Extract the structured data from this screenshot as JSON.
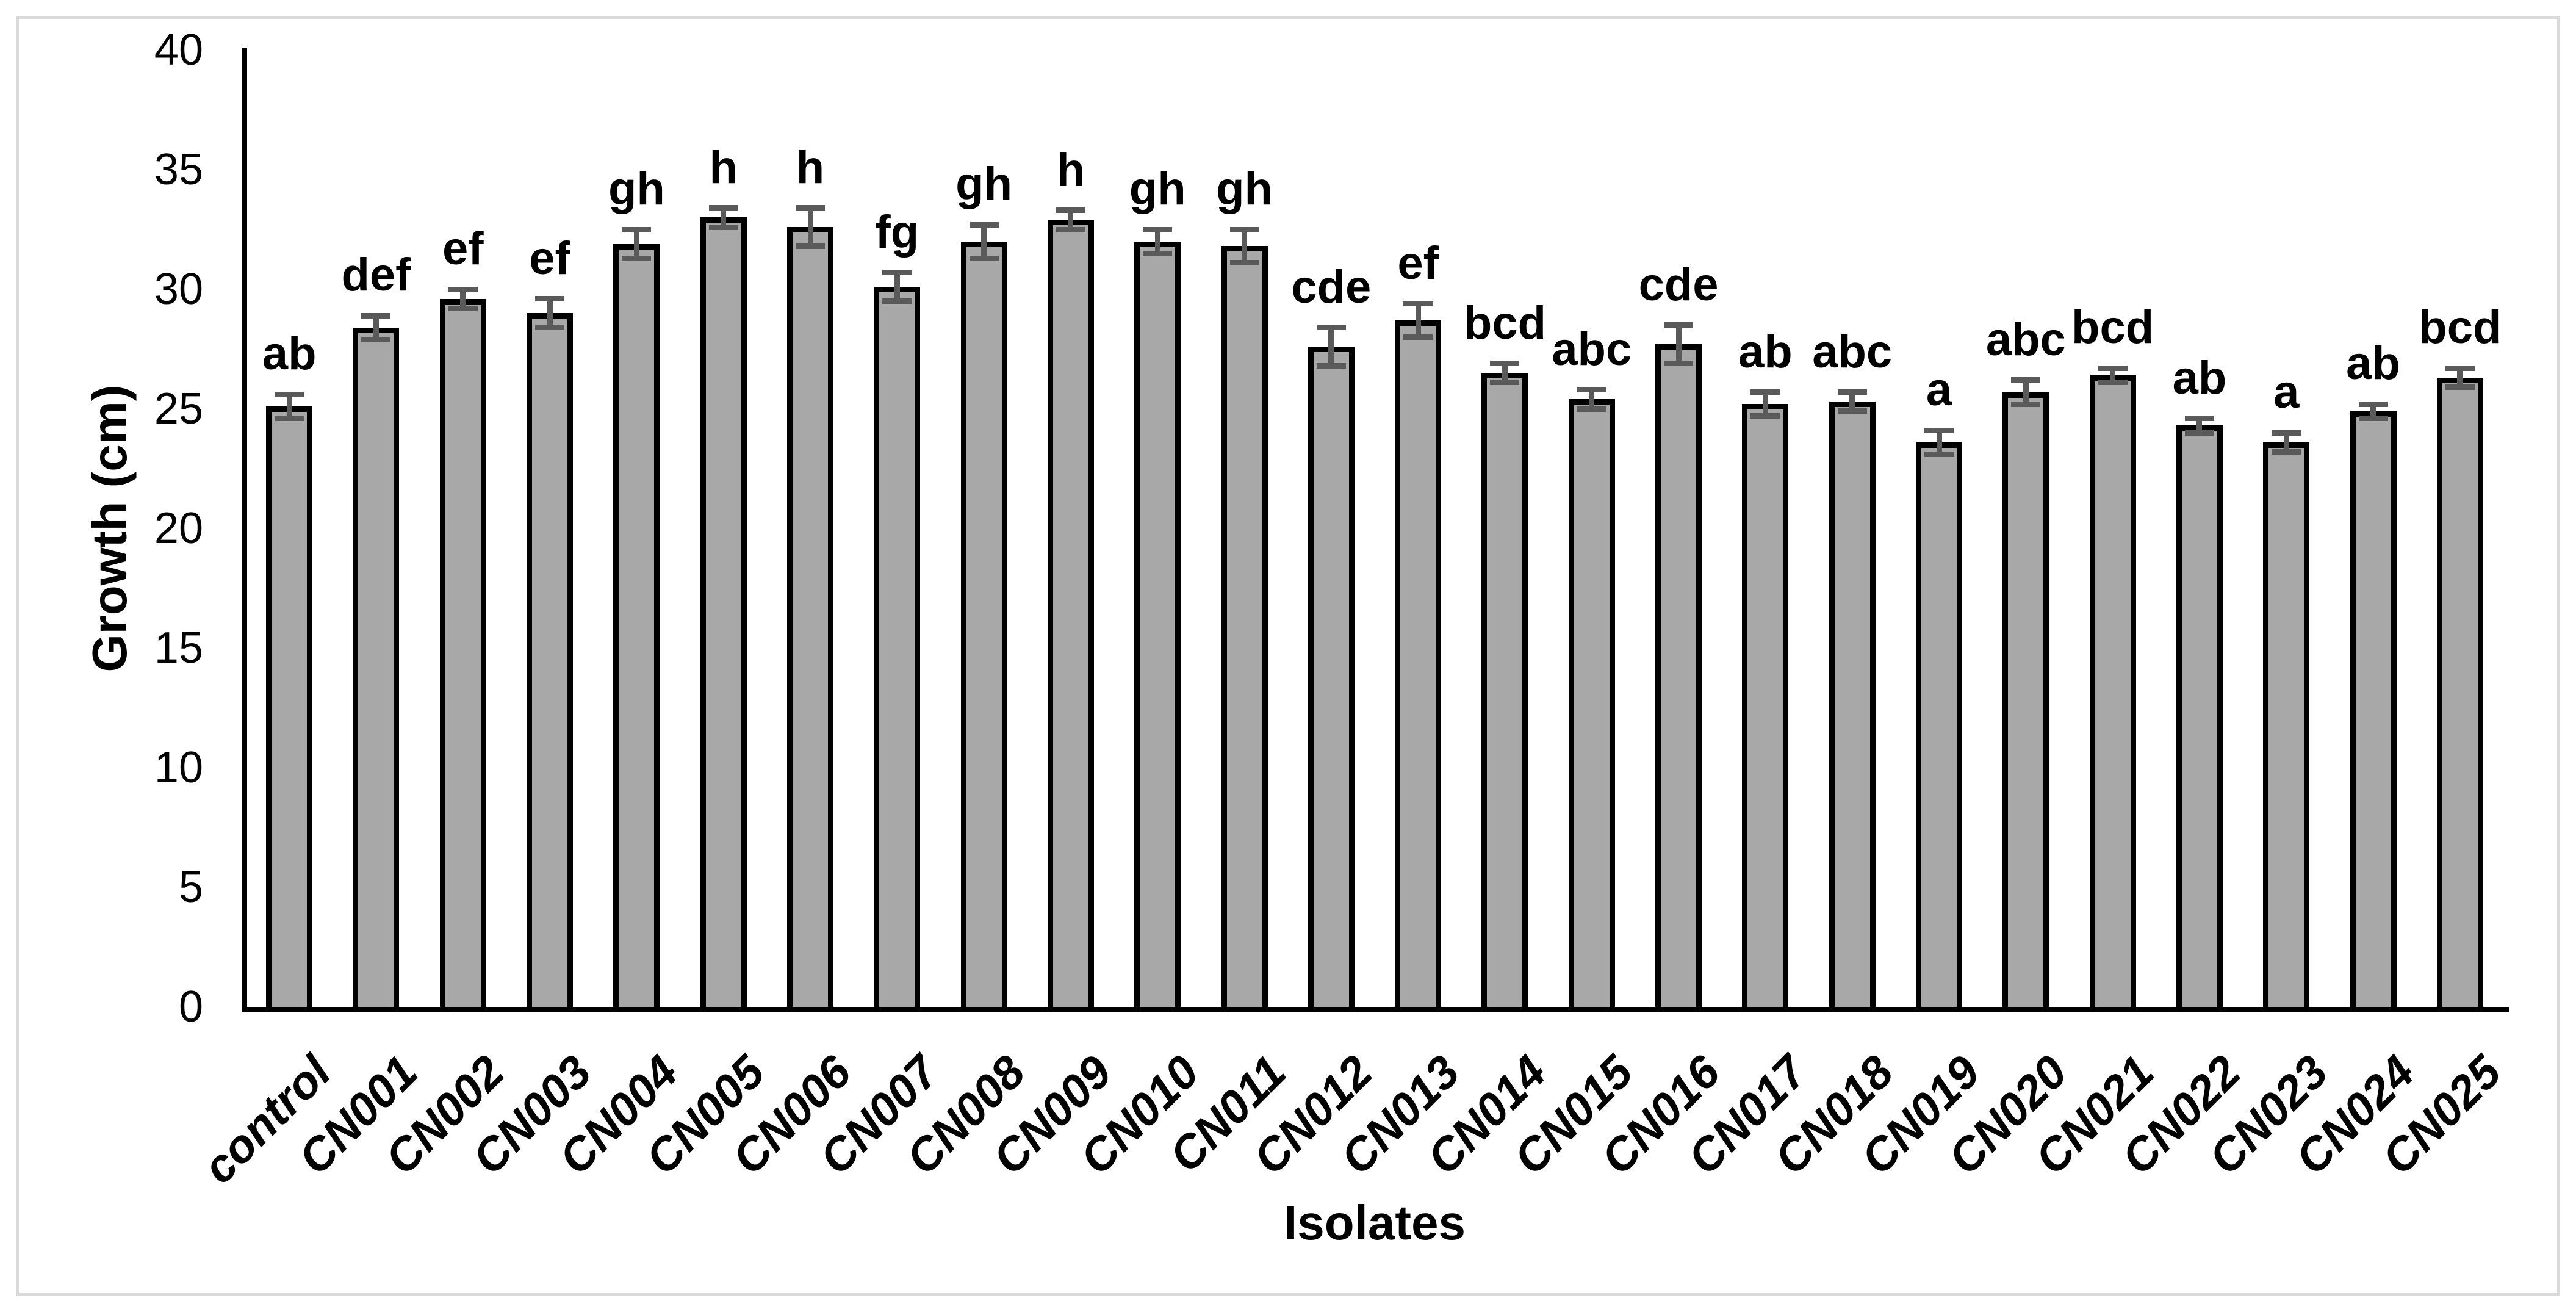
{
  "figure": {
    "background": "#ffffff",
    "border_color": "#d9d9d9"
  },
  "chart_data": {
    "type": "bar",
    "title": "",
    "xlabel": "Isolates",
    "ylabel": "Growth (cm)",
    "ylim": [
      0,
      40
    ],
    "yticks": [
      0,
      5,
      10,
      15,
      20,
      25,
      30,
      35,
      40
    ],
    "grid": false,
    "legend_position": "none",
    "bar_fill_color": "#a8a8a8",
    "bar_border_color": "#000000",
    "error_bar_color": "#5a5a5a",
    "categories": [
      "control",
      "CN001",
      "CN002",
      "CN003",
      "CN004",
      "CN005",
      "CN006",
      "CN007",
      "CN008",
      "CN009",
      "CN010",
      "CN011",
      "CN012",
      "CN013",
      "CN014",
      "CN015",
      "CN016",
      "CN017",
      "CN018",
      "CN019",
      "CN020",
      "CN021",
      "CN022",
      "CN023",
      "CN024",
      "CN025"
    ],
    "values": [
      25.1,
      28.4,
      29.6,
      29.0,
      31.9,
      33.0,
      32.6,
      30.1,
      32.0,
      32.9,
      32.0,
      31.8,
      27.6,
      28.7,
      26.5,
      25.4,
      27.7,
      25.2,
      25.3,
      23.6,
      25.7,
      26.4,
      24.3,
      23.6,
      24.9,
      26.3
    ],
    "errors": [
      0.5,
      0.5,
      0.4,
      0.6,
      0.6,
      0.4,
      0.8,
      0.6,
      0.7,
      0.4,
      0.5,
      0.7,
      0.8,
      0.7,
      0.4,
      0.4,
      0.8,
      0.5,
      0.4,
      0.5,
      0.5,
      0.3,
      0.3,
      0.4,
      0.3,
      0.4
    ],
    "sig_letters": [
      "ab",
      "def",
      "ef",
      "ef",
      "gh",
      "h",
      "h",
      "fg",
      "gh",
      "h",
      "gh",
      "gh",
      "cde",
      "ef",
      "bcd",
      "abc",
      "cde",
      "ab",
      "abc",
      "a",
      "abc",
      "bcd",
      "ab",
      "a",
      "ab",
      "bcd"
    ]
  }
}
